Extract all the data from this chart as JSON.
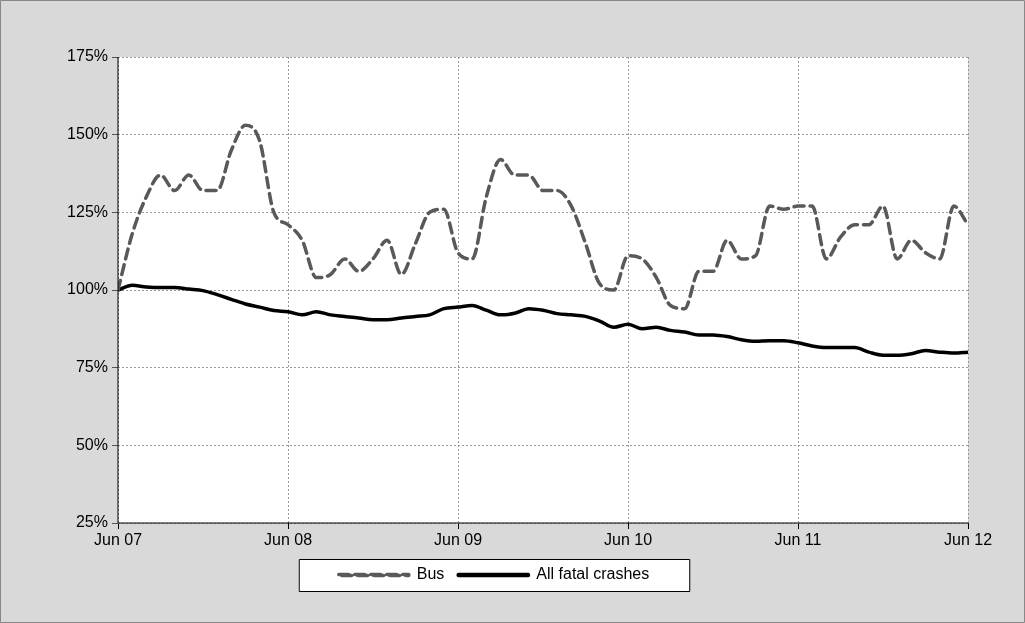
{
  "chart_data": {
    "type": "line",
    "x": [
      "2007-06",
      "2007-07",
      "2007-08",
      "2007-09",
      "2007-10",
      "2007-11",
      "2007-12",
      "2008-01",
      "2008-02",
      "2008-03",
      "2008-04",
      "2008-05",
      "2008-06",
      "2008-07",
      "2008-08",
      "2008-09",
      "2008-10",
      "2008-11",
      "2008-12",
      "2009-01",
      "2009-02",
      "2009-03",
      "2009-04",
      "2009-05",
      "2009-06",
      "2009-07",
      "2009-08",
      "2009-09",
      "2009-10",
      "2009-11",
      "2009-12",
      "2010-01",
      "2010-02",
      "2010-03",
      "2010-04",
      "2010-05",
      "2010-06",
      "2010-07",
      "2010-08",
      "2010-09",
      "2010-10",
      "2010-11",
      "2010-12",
      "2011-01",
      "2011-02",
      "2011-03",
      "2011-04",
      "2011-05",
      "2011-06",
      "2011-07",
      "2011-08",
      "2011-09",
      "2011-10",
      "2011-11",
      "2011-12",
      "2012-01",
      "2012-02",
      "2012-03",
      "2012-04",
      "2012-05",
      "2012-06"
    ],
    "series": [
      {
        "name": "Bus",
        "color": "#595959",
        "line_style": "dashed",
        "values": [
          100,
          118,
          130,
          137,
          132,
          137,
          132,
          132,
          145,
          153,
          148,
          125,
          121,
          116,
          104,
          105,
          110,
          106,
          110,
          116,
          105,
          115,
          125,
          126,
          112,
          110,
          130,
          142,
          137,
          137,
          132,
          132,
          127,
          115,
          102,
          100,
          111,
          110,
          104,
          95,
          94,
          106,
          106,
          116,
          110,
          111,
          127,
          126,
          127,
          127,
          110,
          117,
          121,
          121,
          127,
          110,
          116,
          112,
          110,
          127,
          121
        ]
      },
      {
        "name": "All fatal crashes",
        "color": "#000000",
        "line_style": "solid",
        "values": [
          100,
          101.5,
          101,
          100.8,
          100.8,
          100.3,
          99.8,
          98.5,
          97,
          95.5,
          94.5,
          93.4,
          93,
          92,
          93,
          92,
          91.5,
          91,
          90.4,
          90.4,
          91,
          91.5,
          92,
          94,
          94.5,
          95,
          93.5,
          92,
          92.5,
          94,
          93.5,
          92.4,
          92,
          91.5,
          90,
          88,
          89,
          87.5,
          88,
          87,
          86.5,
          85.5,
          85.5,
          85,
          84,
          83.5,
          83.7,
          83.7,
          83,
          82,
          81.5,
          81.5,
          81.5,
          80,
          79,
          79,
          79.5,
          80.5,
          80,
          79.7,
          80
        ]
      }
    ],
    "xlim": [
      "2007-06",
      "2012-06"
    ],
    "xticks": [
      {
        "value": "2007-06",
        "label": "Jun 07"
      },
      {
        "value": "2008-06",
        "label": "Jun 08"
      },
      {
        "value": "2009-06",
        "label": "Jun 09"
      },
      {
        "value": "2010-06",
        "label": "Jun 10"
      },
      {
        "value": "2011-06",
        "label": "Jun 11"
      },
      {
        "value": "2012-06",
        "label": "Jun 12"
      }
    ],
    "ylim": [
      25,
      175
    ],
    "yticks": [
      {
        "value": 25,
        "label": "25%"
      },
      {
        "value": 50,
        "label": "50%"
      },
      {
        "value": 75,
        "label": "75%"
      },
      {
        "value": 100,
        "label": "100%"
      },
      {
        "value": 125,
        "label": "125%"
      },
      {
        "value": 150,
        "label": "150%"
      },
      {
        "value": 175,
        "label": "175%"
      }
    ],
    "grid": true,
    "legend": "bottom",
    "marker": "none"
  }
}
